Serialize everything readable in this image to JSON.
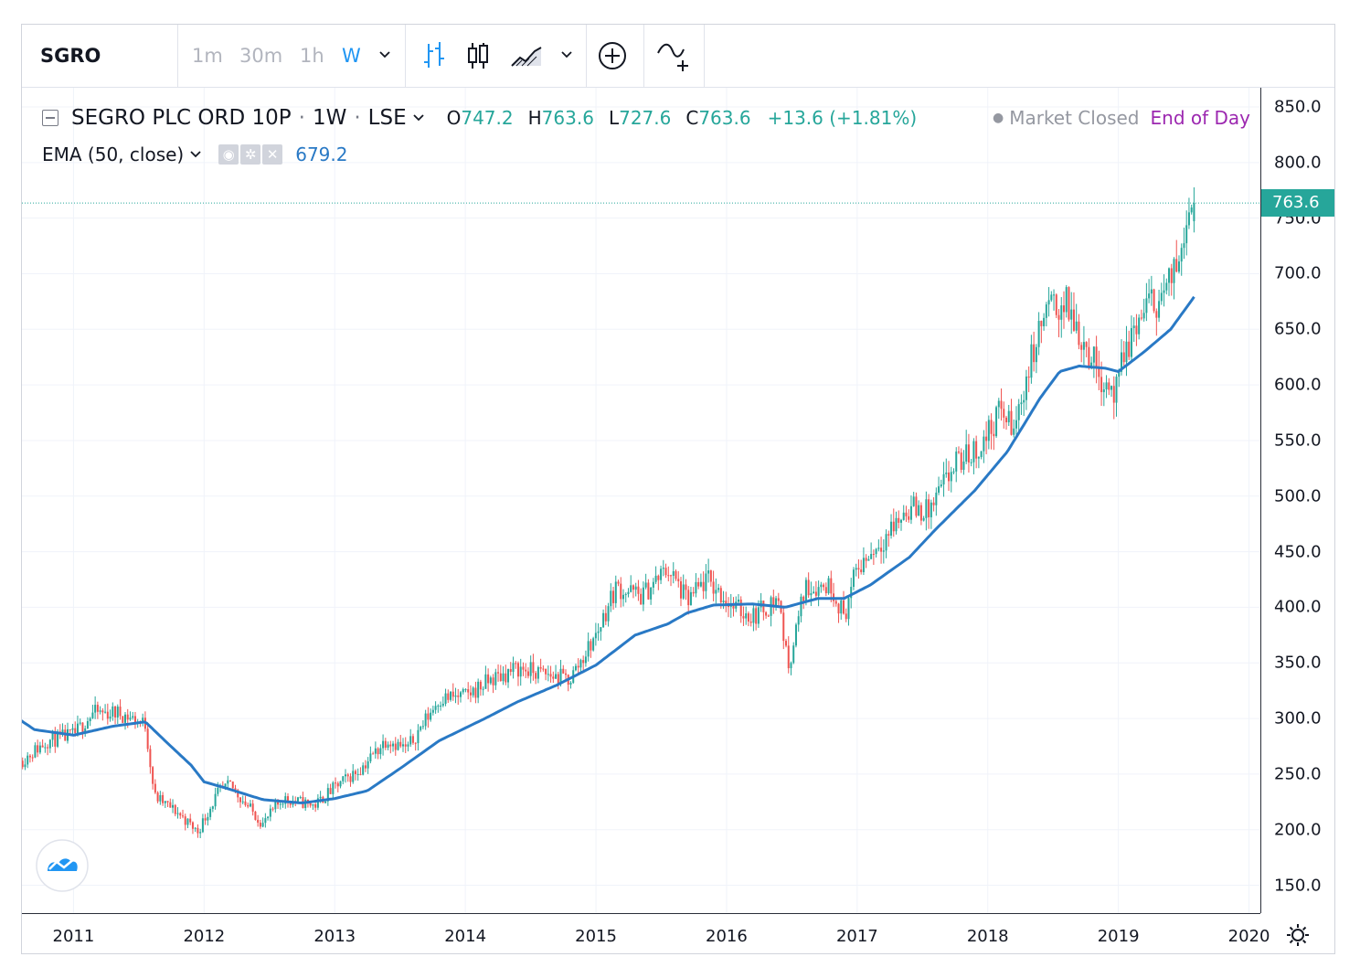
{
  "toolbar": {
    "symbol": "SGRO",
    "intervals": [
      "1m",
      "30m",
      "1h",
      "W"
    ],
    "active_interval": "W"
  },
  "legend": {
    "title": "SEGRO PLC ORD 10P",
    "interval": "1W",
    "exchange": "LSE",
    "ohlc": {
      "o_label": "O",
      "o": "747.2",
      "h_label": "H",
      "h": "763.6",
      "l_label": "L",
      "l": "727.6",
      "c_label": "C",
      "c": "763.6"
    },
    "change": "+13.6 (+1.81%)",
    "market_status": "Market Closed",
    "data_status": "End of Day"
  },
  "indicator": {
    "name": "EMA (50, close)",
    "value": "679.2"
  },
  "colors": {
    "up": "#26a69a",
    "down": "#ef5350",
    "ema": "#2979c5",
    "accent": "#2196f3",
    "eod": "#9c27b0"
  },
  "price_tag": "763.6",
  "chart_data": {
    "type": "candlestick",
    "title": "SEGRO PLC ORD 10P · 1W · LSE",
    "ylim": [
      110,
      855
    ],
    "y_ticks": [
      "850.0",
      "800.0",
      "750.0",
      "700.0",
      "650.0",
      "600.0",
      "550.0",
      "500.0",
      "450.0",
      "400.0",
      "350.0",
      "300.0",
      "250.0",
      "200.0",
      "150.0"
    ],
    "x_ticks": [
      "2011",
      "2012",
      "2013",
      "2014",
      "2015",
      "2016",
      "2017",
      "2018",
      "2019",
      "2020"
    ],
    "last_close": 763.6,
    "price_anchors": [
      {
        "t": 2010.6,
        "p": 262
      },
      {
        "t": 2010.8,
        "p": 280
      },
      {
        "t": 2011.0,
        "p": 285
      },
      {
        "t": 2011.15,
        "p": 305
      },
      {
        "t": 2011.35,
        "p": 305
      },
      {
        "t": 2011.55,
        "p": 295
      },
      {
        "t": 2011.62,
        "p": 230
      },
      {
        "t": 2011.8,
        "p": 215
      },
      {
        "t": 2011.95,
        "p": 198
      },
      {
        "t": 2012.1,
        "p": 232
      },
      {
        "t": 2012.2,
        "p": 240
      },
      {
        "t": 2012.45,
        "p": 205
      },
      {
        "t": 2012.6,
        "p": 228
      },
      {
        "t": 2012.85,
        "p": 222
      },
      {
        "t": 2013.0,
        "p": 238
      },
      {
        "t": 2013.2,
        "p": 255
      },
      {
        "t": 2013.4,
        "p": 282
      },
      {
        "t": 2013.55,
        "p": 272
      },
      {
        "t": 2013.8,
        "p": 318
      },
      {
        "t": 2014.0,
        "p": 320
      },
      {
        "t": 2014.2,
        "p": 335
      },
      {
        "t": 2014.4,
        "p": 345
      },
      {
        "t": 2014.6,
        "p": 340
      },
      {
        "t": 2014.8,
        "p": 335
      },
      {
        "t": 2015.0,
        "p": 375
      },
      {
        "t": 2015.15,
        "p": 418
      },
      {
        "t": 2015.35,
        "p": 410
      },
      {
        "t": 2015.55,
        "p": 435
      },
      {
        "t": 2015.7,
        "p": 405
      },
      {
        "t": 2015.85,
        "p": 425
      },
      {
        "t": 2016.05,
        "p": 400
      },
      {
        "t": 2016.2,
        "p": 392
      },
      {
        "t": 2016.4,
        "p": 408
      },
      {
        "t": 2016.47,
        "p": 345
      },
      {
        "t": 2016.6,
        "p": 418
      },
      {
        "t": 2016.8,
        "p": 420
      },
      {
        "t": 2016.9,
        "p": 392
      },
      {
        "t": 2017.0,
        "p": 435
      },
      {
        "t": 2017.2,
        "p": 462
      },
      {
        "t": 2017.4,
        "p": 490
      },
      {
        "t": 2017.55,
        "p": 485
      },
      {
        "t": 2017.75,
        "p": 528
      },
      {
        "t": 2017.95,
        "p": 545
      },
      {
        "t": 2018.1,
        "p": 578
      },
      {
        "t": 2018.2,
        "p": 558
      },
      {
        "t": 2018.3,
        "p": 610
      },
      {
        "t": 2018.45,
        "p": 668
      },
      {
        "t": 2018.6,
        "p": 672
      },
      {
        "t": 2018.75,
        "p": 635
      },
      {
        "t": 2018.85,
        "p": 612
      },
      {
        "t": 2018.98,
        "p": 590
      },
      {
        "t": 2019.05,
        "p": 630
      },
      {
        "t": 2019.2,
        "p": 668
      },
      {
        "t": 2019.35,
        "p": 682
      },
      {
        "t": 2019.45,
        "p": 705
      },
      {
        "t": 2019.52,
        "p": 758
      },
      {
        "t": 2019.58,
        "p": 763.6
      }
    ],
    "ema_50": [
      {
        "t": 2010.6,
        "p": 298
      },
      {
        "t": 2010.7,
        "p": 290
      },
      {
        "t": 2011.0,
        "p": 285
      },
      {
        "t": 2011.3,
        "p": 293
      },
      {
        "t": 2011.55,
        "p": 297
      },
      {
        "t": 2011.7,
        "p": 280
      },
      {
        "t": 2011.9,
        "p": 258
      },
      {
        "t": 2012.0,
        "p": 243
      },
      {
        "t": 2012.15,
        "p": 238
      },
      {
        "t": 2012.45,
        "p": 227
      },
      {
        "t": 2012.75,
        "p": 224
      },
      {
        "t": 2013.0,
        "p": 228
      },
      {
        "t": 2013.25,
        "p": 235
      },
      {
        "t": 2013.5,
        "p": 255
      },
      {
        "t": 2013.8,
        "p": 280
      },
      {
        "t": 2014.15,
        "p": 300
      },
      {
        "t": 2014.4,
        "p": 315
      },
      {
        "t": 2014.7,
        "p": 330
      },
      {
        "t": 2015.0,
        "p": 348
      },
      {
        "t": 2015.3,
        "p": 375
      },
      {
        "t": 2015.55,
        "p": 385
      },
      {
        "t": 2015.7,
        "p": 395
      },
      {
        "t": 2015.9,
        "p": 402
      },
      {
        "t": 2016.2,
        "p": 403
      },
      {
        "t": 2016.45,
        "p": 400
      },
      {
        "t": 2016.7,
        "p": 408
      },
      {
        "t": 2016.9,
        "p": 408
      },
      {
        "t": 2017.1,
        "p": 420
      },
      {
        "t": 2017.4,
        "p": 445
      },
      {
        "t": 2017.6,
        "p": 470
      },
      {
        "t": 2017.9,
        "p": 505
      },
      {
        "t": 2018.15,
        "p": 540
      },
      {
        "t": 2018.4,
        "p": 588
      },
      {
        "t": 2018.55,
        "p": 612
      },
      {
        "t": 2018.7,
        "p": 617
      },
      {
        "t": 2018.9,
        "p": 615
      },
      {
        "t": 2019.0,
        "p": 612
      },
      {
        "t": 2019.2,
        "p": 630
      },
      {
        "t": 2019.4,
        "p": 650
      },
      {
        "t": 2019.58,
        "p": 679.2
      }
    ]
  }
}
